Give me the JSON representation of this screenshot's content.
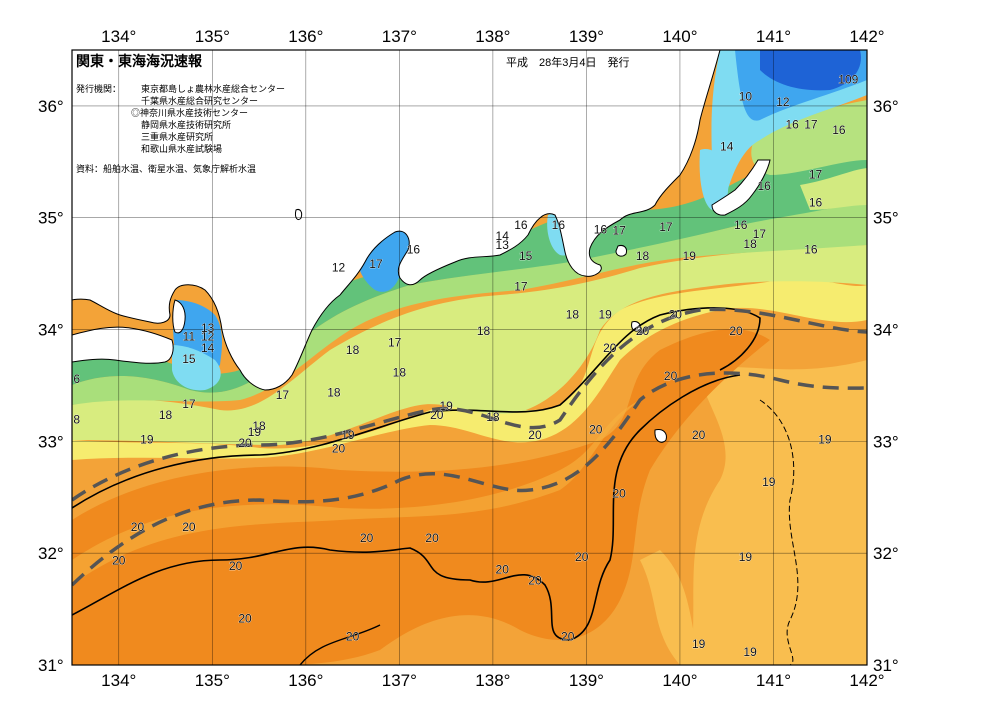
{
  "title": "関東・東海海況速報",
  "issue_date": "平成　28年3月4日　発行",
  "issuers_label": "発行機関：",
  "issuers": [
    "東京都島しょ農林水産総合センター",
    "千葉県水産総合研究センター",
    "◎神奈川県水産技術センター",
    "静岡県水産技術研究所",
    "三重県水産研究所",
    "和歌山県水産試験場"
  ],
  "source_note": "資料：船舶水温、衛星水温、気象庁解析水温",
  "axes": {
    "lon_ticks": [
      "134°",
      "135°",
      "136°",
      "137°",
      "138°",
      "139°",
      "140°",
      "141°",
      "142°"
    ],
    "lat_ticks": [
      "36°",
      "35°",
      "34°",
      "33°",
      "32°",
      "31°"
    ],
    "lon_range": [
      133.5,
      142
    ],
    "lat_range": [
      31,
      36.5
    ],
    "grid": true
  },
  "colors": {
    "very_cold": "#1e63d6",
    "cold": "#3fa6ef",
    "cool": "#7fdcf2",
    "mild": "#62c27a",
    "lightgreen": "#a9df7b",
    "yellowgreen": "#d8ec7f",
    "yellow": "#f6ec6f",
    "lightorange": "#f9be4f",
    "orange": "#f3a338",
    "darkorange": "#f08a1e",
    "land": "#ffffff",
    "kuroshio_axis": "#555555"
  },
  "isotherm_labels": [
    {
      "text": "12",
      "lon": 141.1,
      "lat": 36.0
    },
    {
      "text": "109",
      "lon": 141.8,
      "lat": 36.2
    },
    {
      "text": "10",
      "lon": 140.7,
      "lat": 36.05
    },
    {
      "text": "16",
      "lon": 141.2,
      "lat": 35.8
    },
    {
      "text": "17",
      "lon": 141.4,
      "lat": 35.8
    },
    {
      "text": "16",
      "lon": 141.7,
      "lat": 35.75
    },
    {
      "text": "14",
      "lon": 140.5,
      "lat": 35.6
    },
    {
      "text": "17",
      "lon": 141.45,
      "lat": 35.35
    },
    {
      "text": "16",
      "lon": 140.9,
      "lat": 35.25
    },
    {
      "text": "16",
      "lon": 141.45,
      "lat": 35.1
    },
    {
      "text": "16",
      "lon": 140.65,
      "lat": 34.9
    },
    {
      "text": "17",
      "lon": 140.85,
      "lat": 34.82
    },
    {
      "text": "18",
      "lon": 140.75,
      "lat": 34.73
    },
    {
      "text": "16",
      "lon": 141.4,
      "lat": 34.68
    },
    {
      "text": "17",
      "lon": 139.85,
      "lat": 34.88
    },
    {
      "text": "19",
      "lon": 140.1,
      "lat": 34.62
    },
    {
      "text": "18",
      "lon": 139.6,
      "lat": 34.62
    },
    {
      "text": "16",
      "lon": 138.7,
      "lat": 34.9
    },
    {
      "text": "16",
      "lon": 138.3,
      "lat": 34.9
    },
    {
      "text": "14",
      "lon": 138.1,
      "lat": 34.8
    },
    {
      "text": "13",
      "lon": 138.1,
      "lat": 34.72
    },
    {
      "text": "15",
      "lon": 138.35,
      "lat": 34.62
    },
    {
      "text": "16",
      "lon": 139.15,
      "lat": 34.86
    },
    {
      "text": "17",
      "lon": 139.35,
      "lat": 34.85
    },
    {
      "text": "16",
      "lon": 137.15,
      "lat": 34.68
    },
    {
      "text": "17",
      "lon": 136.75,
      "lat": 34.55
    },
    {
      "text": "12",
      "lon": 136.35,
      "lat": 34.52
    },
    {
      "text": "17",
      "lon": 138.3,
      "lat": 34.35
    },
    {
      "text": "18",
      "lon": 138.85,
      "lat": 34.1
    },
    {
      "text": "19",
      "lon": 139.2,
      "lat": 34.1
    },
    {
      "text": "20",
      "lon": 139.95,
      "lat": 34.1
    },
    {
      "text": "20",
      "lon": 139.6,
      "lat": 33.95
    },
    {
      "text": "20",
      "lon": 140.6,
      "lat": 33.95
    },
    {
      "text": "20",
      "lon": 139.25,
      "lat": 33.8
    },
    {
      "text": "18",
      "lon": 137.9,
      "lat": 33.95
    },
    {
      "text": "17",
      "lon": 136.95,
      "lat": 33.85
    },
    {
      "text": "18",
      "lon": 136.5,
      "lat": 33.78
    },
    {
      "text": "18",
      "lon": 137.0,
      "lat": 33.58
    },
    {
      "text": "18",
      "lon": 136.3,
      "lat": 33.4
    },
    {
      "text": "20",
      "lon": 139.9,
      "lat": 33.55
    },
    {
      "text": "19",
      "lon": 137.5,
      "lat": 33.28
    },
    {
      "text": "20",
      "lon": 137.4,
      "lat": 33.2
    },
    {
      "text": "18",
      "lon": 138.0,
      "lat": 33.18
    },
    {
      "text": "20",
      "lon": 138.45,
      "lat": 33.02
    },
    {
      "text": "20",
      "lon": 139.1,
      "lat": 33.07
    },
    {
      "text": "20",
      "lon": 140.2,
      "lat": 33.02
    },
    {
      "text": "19",
      "lon": 136.45,
      "lat": 33.02
    },
    {
      "text": "20",
      "lon": 136.35,
      "lat": 32.9
    },
    {
      "text": "18",
      "lon": 135.5,
      "lat": 33.1
    },
    {
      "text": "19",
      "lon": 135.45,
      "lat": 33.05
    },
    {
      "text": "20",
      "lon": 135.35,
      "lat": 32.95
    },
    {
      "text": "17",
      "lon": 135.75,
      "lat": 33.38
    },
    {
      "text": "17",
      "lon": 134.75,
      "lat": 33.3
    },
    {
      "text": "18",
      "lon": 134.5,
      "lat": 33.2
    },
    {
      "text": "19",
      "lon": 134.3,
      "lat": 32.98
    },
    {
      "text": "15",
      "lon": 134.75,
      "lat": 33.7
    },
    {
      "text": "14",
      "lon": 134.95,
      "lat": 33.8
    },
    {
      "text": "11",
      "lon": 134.75,
      "lat": 33.9
    },
    {
      "text": "12",
      "lon": 134.95,
      "lat": 33.9
    },
    {
      "text": "13",
      "lon": 134.95,
      "lat": 33.98
    },
    {
      "text": "6",
      "lon": 133.55,
      "lat": 33.52
    },
    {
      "text": "8",
      "lon": 133.55,
      "lat": 33.16
    },
    {
      "text": "19",
      "lon": 141.55,
      "lat": 32.98
    },
    {
      "text": "19",
      "lon": 140.95,
      "lat": 32.6
    },
    {
      "text": "20",
      "lon": 139.35,
      "lat": 32.5
    },
    {
      "text": "20",
      "lon": 134.2,
      "lat": 32.2
    },
    {
      "text": "20",
      "lon": 134.75,
      "lat": 32.2
    },
    {
      "text": "20",
      "lon": 136.65,
      "lat": 32.1
    },
    {
      "text": "20",
      "lon": 137.35,
      "lat": 32.1
    },
    {
      "text": "20",
      "lon": 135.25,
      "lat": 31.85
    },
    {
      "text": "20",
      "lon": 138.1,
      "lat": 31.82
    },
    {
      "text": "20",
      "lon": 138.45,
      "lat": 31.72
    },
    {
      "text": "20",
      "lon": 138.95,
      "lat": 31.93
    },
    {
      "text": "19",
      "lon": 140.7,
      "lat": 31.93
    },
    {
      "text": "20",
      "lon": 134.0,
      "lat": 31.9
    },
    {
      "text": "20",
      "lon": 135.35,
      "lat": 31.38
    },
    {
      "text": "20",
      "lon": 136.5,
      "lat": 31.22
    },
    {
      "text": "20",
      "lon": 138.8,
      "lat": 31.22
    },
    {
      "text": "19",
      "lon": 140.2,
      "lat": 31.15
    },
    {
      "text": "19",
      "lon": 140.75,
      "lat": 31.08
    }
  ]
}
